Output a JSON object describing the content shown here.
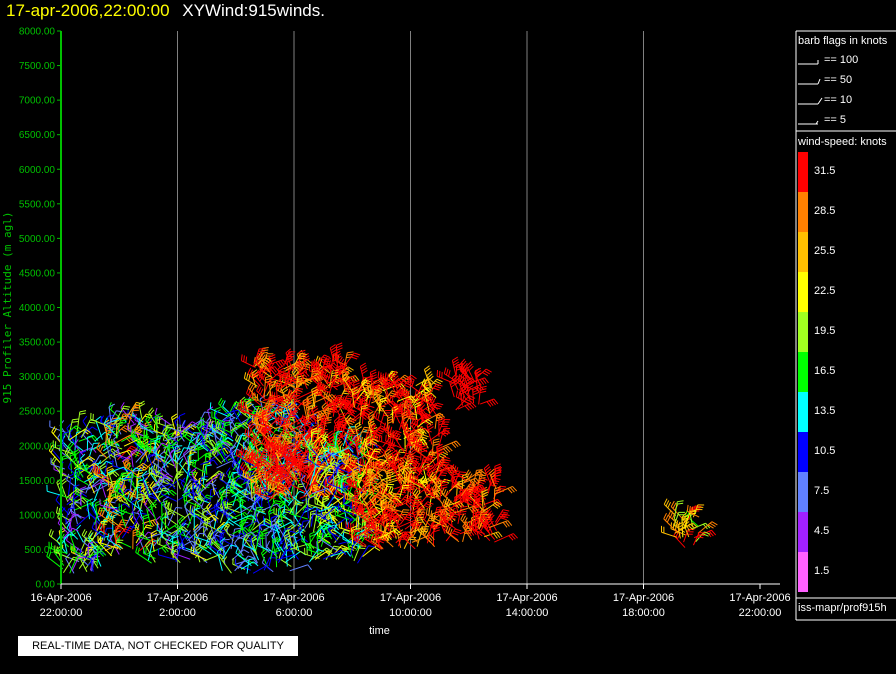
{
  "header": {
    "timestamp": "17-apr-2006,22:00:00",
    "product": "XYWind:915winds."
  },
  "qc_notice": "REAL-TIME DATA, NOT CHECKED FOR QUALITY",
  "footer_id": "iss-mapr/prof915h",
  "colors": {
    "axis_y": "#00c000",
    "axis_x": "#ffffff",
    "gridline": "#808080",
    "title_time": "#ffff00"
  },
  "legend": {
    "flags_title": "barb flags in knots",
    "flags": [
      {
        "label": "== 100"
      },
      {
        "label": "== 50"
      },
      {
        "label": "== 10"
      },
      {
        "label": "== 5"
      }
    ],
    "speed_title": "wind-speed: knots",
    "speed_bins": [
      {
        "label": "31.5",
        "color": "#ff0000"
      },
      {
        "label": "28.5",
        "color": "#ff8000"
      },
      {
        "label": "25.5",
        "color": "#ffbf00"
      },
      {
        "label": "22.5",
        "color": "#ffff00"
      },
      {
        "label": "19.5",
        "color": "#a0ff20"
      },
      {
        "label": "16.5",
        "color": "#00ff00"
      },
      {
        "label": "13.5",
        "color": "#00ffff"
      },
      {
        "label": "10.5",
        "color": "#0000ff"
      },
      {
        "label": "7.5",
        "color": "#6080ff"
      },
      {
        "label": "4.5",
        "color": "#a020ff"
      },
      {
        "label": "1.5",
        "color": "#ff60ff"
      }
    ]
  },
  "chart_data": {
    "type": "scatter",
    "xlabel": "time",
    "ylabel": "915 Profiler Altitude (m agl)",
    "ylim": [
      0,
      8000
    ],
    "yticks": [
      "0.00",
      "500.00",
      "1000.00",
      "1500.00",
      "2000.00",
      "2500.00",
      "3000.00",
      "3500.00",
      "4000.00",
      "4500.00",
      "5000.00",
      "5500.00",
      "6000.00",
      "6500.00",
      "7000.00",
      "7500.00",
      "8000.00"
    ],
    "xticks": [
      {
        "date": "16-Apr-2006",
        "time": "22:00:00"
      },
      {
        "date": "17-Apr-2006",
        "time": "2:00:00"
      },
      {
        "date": "17-Apr-2006",
        "time": "6:00:00"
      },
      {
        "date": "17-Apr-2006",
        "time": "10:00:00"
      },
      {
        "date": "17-Apr-2006",
        "time": "14:00:00"
      },
      {
        "date": "17-Apr-2006",
        "time": "18:00:00"
      },
      {
        "date": "17-Apr-2006",
        "time": "22:00:00"
      }
    ],
    "xlim_hours": [
      0,
      24
    ],
    "grid": "vertical",
    "clusters": [
      {
        "t": [
          0,
          1.5
        ],
        "alt": [
          150,
          2200
        ],
        "speed": [
          4,
          22
        ]
      },
      {
        "t": [
          1.5,
          3
        ],
        "alt": [
          400,
          2400
        ],
        "speed": [
          4,
          32
        ]
      },
      {
        "t": [
          3,
          5.5
        ],
        "alt": [
          300,
          2300
        ],
        "speed": [
          5,
          22
        ]
      },
      {
        "t": [
          5.5,
          8.5
        ],
        "alt": [
          150,
          2500
        ],
        "speed": [
          6,
          20
        ]
      },
      {
        "t": [
          6.5,
          10
        ],
        "alt": [
          1200,
          3200
        ],
        "speed": [
          25,
          40
        ]
      },
      {
        "t": [
          8.5,
          10.5
        ],
        "alt": [
          300,
          2000
        ],
        "speed": [
          8,
          24
        ]
      },
      {
        "t": [
          10,
          13
        ],
        "alt": [
          500,
          2900
        ],
        "speed": [
          22,
          40
        ]
      },
      {
        "t": [
          13,
          15
        ],
        "alt": [
          600,
          1500
        ],
        "speed": [
          24,
          40
        ]
      },
      {
        "t": [
          13.5,
          14.5
        ],
        "alt": [
          2500,
          3000
        ],
        "speed": [
          30,
          40
        ]
      },
      {
        "t": [
          21,
          22
        ],
        "alt": [
          500,
          1000
        ],
        "speed": [
          17,
          34
        ]
      }
    ]
  }
}
